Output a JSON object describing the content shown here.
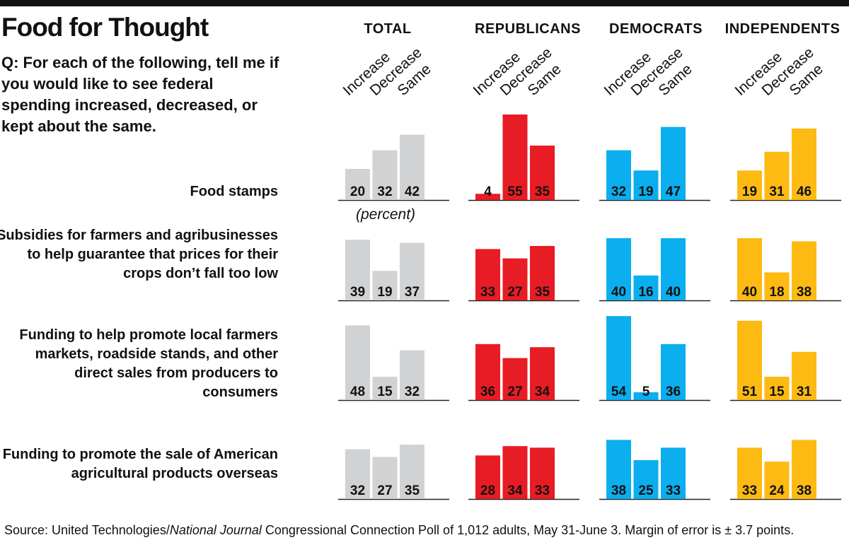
{
  "title": "Food for Thought",
  "question": "Q: For each of the following, tell me if you would like to see federal spending increased, decreased, or kept about the same.",
  "unit_note": "(percent)",
  "source": {
    "prefix": "Source: United Technologies/",
    "publication": "National Journal",
    "suffix": " Congressional Connection Poll of 1,012 adults, May 31-June 3. Margin of error is ± 3.7 points."
  },
  "colors": {
    "total": "#d1d2d4",
    "republicans": "#e81c24",
    "democrats": "#0baeee",
    "independents": "#fdba12",
    "baseline": "#222222",
    "value_text": "#111111"
  },
  "chart_data": {
    "type": "bar",
    "title": "Food for Thought",
    "ylabel": "(percent)",
    "ylim": [
      0,
      55
    ],
    "categories": [
      "Increase",
      "Decrease",
      "Same"
    ],
    "groups": [
      "TOTAL",
      "REPUBLICANS",
      "DEMOCRATS",
      "INDEPENDENTS"
    ],
    "rows": [
      {
        "label": "Food stamps",
        "values": {
          "TOTAL": [
            20,
            32,
            42
          ],
          "REPUBLICANS": [
            4,
            55,
            35
          ],
          "DEMOCRATS": [
            32,
            19,
            47
          ],
          "INDEPENDENTS": [
            19,
            31,
            46
          ]
        }
      },
      {
        "label": "Subsidies for farmers and agribusinesses to help guarantee that prices for their crops don’t fall too low",
        "values": {
          "TOTAL": [
            39,
            19,
            37
          ],
          "REPUBLICANS": [
            33,
            27,
            35
          ],
          "DEMOCRATS": [
            40,
            16,
            40
          ],
          "INDEPENDENTS": [
            40,
            18,
            38
          ]
        }
      },
      {
        "label": "Funding to help promote local farmers markets, roadside stands, and other direct sales from producers to consumers",
        "values": {
          "TOTAL": [
            48,
            15,
            32
          ],
          "REPUBLICANS": [
            36,
            27,
            34
          ],
          "DEMOCRATS": [
            54,
            5,
            36
          ],
          "INDEPENDENTS": [
            51,
            15,
            31
          ]
        }
      },
      {
        "label": "Funding to promote the sale of American agricultural products overseas",
        "values": {
          "TOTAL": [
            32,
            27,
            35
          ],
          "REPUBLICANS": [
            28,
            34,
            33
          ],
          "DEMOCRATS": [
            38,
            25,
            33
          ],
          "INDEPENDENTS": [
            33,
            24,
            38
          ]
        }
      }
    ]
  }
}
